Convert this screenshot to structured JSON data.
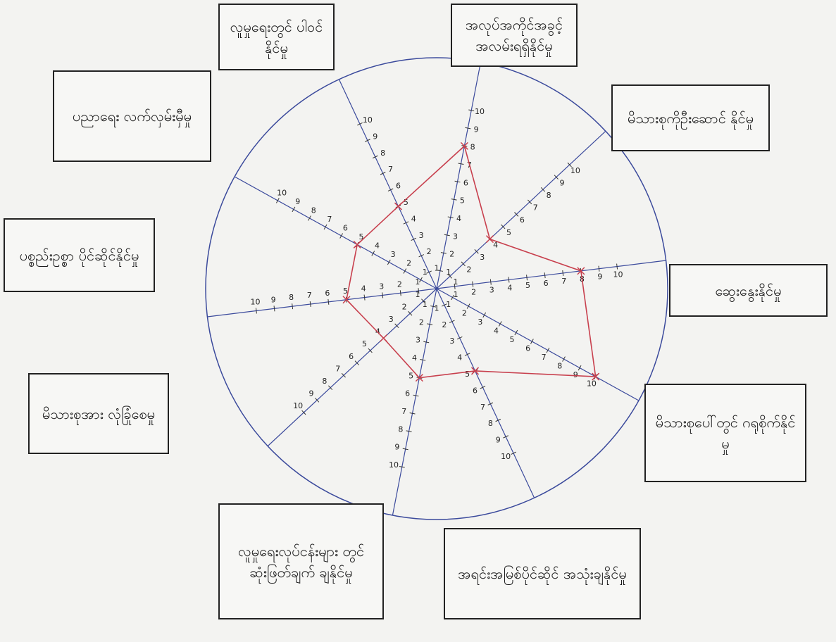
{
  "chart_data": {
    "type": "radar",
    "categories": [
      "အလုပ်အကိုင်အခွင့် အလမ်းရရှိနိုင်မှု",
      "မိသားစုကိုဦးဆောင် နိုင်မှု",
      "ဆွေးနွေးနိုင်မှု",
      "မိသားစုပေါ်တွင် ဂရုစိုက်နိုင်မှု",
      "အရင်းအမြစ်ပိုင်ဆိုင် အသုံးချနိုင်မှု",
      "လူမှုရေးလုပ်ငန်းများ တွင်ဆုံးဖြတ်ချက် ချနိုင်မှု",
      "မိသားစုအား လုံခြုံစေမှု",
      "ပစ္စည်းဥစ္စာ ပိုင်ဆိုင်နိုင်မှု",
      "ပညာရေး လက်လှမ်းမှီမှု",
      "လူမှုရေးတွင် ပါဝင်နိုင်မှု"
    ],
    "values": [
      8,
      4,
      8,
      10,
      5,
      5,
      4,
      5,
      5,
      5
    ],
    "color": "#c8404e",
    "axis_color": "#3b4a9c",
    "rlim": [
      0,
      10
    ],
    "rticks": [
      1,
      2,
      3,
      4,
      5,
      6,
      7,
      8,
      9,
      10
    ]
  }
}
